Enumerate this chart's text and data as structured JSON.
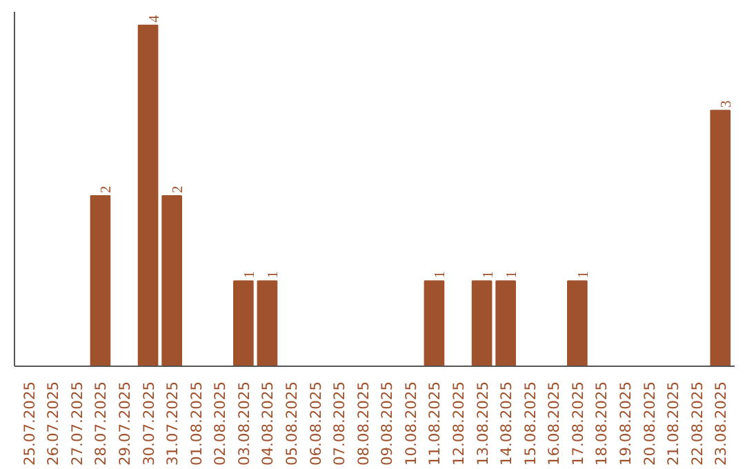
{
  "chart_data": {
    "type": "bar",
    "categories": [
      "25.07.2025",
      "26.07.2025",
      "27.07.2025",
      "28.07.2025",
      "29.07.2025",
      "30.07.2025",
      "31.07.2025",
      "01.08.2025",
      "02.08.2025",
      "03.08.2025",
      "04.08.2025",
      "05.08.2025",
      "06.08.2025",
      "07.08.2025",
      "08.08.2025",
      "09.08.2025",
      "10.08.2025",
      "11.08.2025",
      "12.08.2025",
      "13.08.2025",
      "14.08.2025",
      "15.08.2025",
      "16.08.2025",
      "17.08.2025",
      "18.08.2025",
      "19.08.2025",
      "20.08.2025",
      "21.08.2025",
      "22.08.2025",
      "23.08.2025"
    ],
    "values": [
      0,
      0,
      0,
      2,
      0,
      4,
      2,
      0,
      0,
      1,
      1,
      0,
      0,
      0,
      0,
      0,
      0,
      1,
      0,
      1,
      1,
      0,
      0,
      1,
      0,
      0,
      0,
      0,
      0,
      3
    ],
    "value_labels": [
      null,
      null,
      null,
      "2",
      null,
      "4",
      "2",
      null,
      null,
      "1",
      "1",
      null,
      null,
      null,
      null,
      null,
      null,
      "1",
      null,
      "1",
      "1",
      null,
      null,
      "1",
      null,
      null,
      null,
      null,
      null,
      "3"
    ],
    "color": "#a0522d",
    "grid": false
  }
}
